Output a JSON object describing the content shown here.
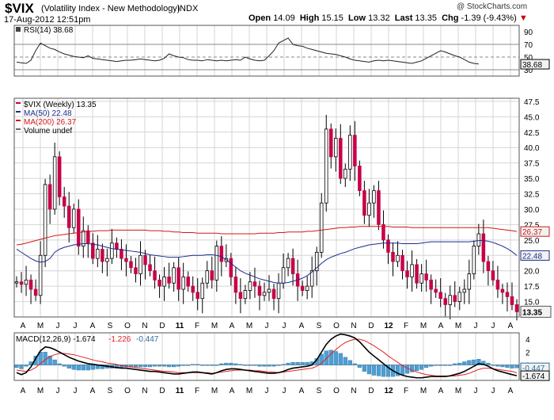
{
  "header": {
    "symbol": "$VIX",
    "name": "(Volatility Index - New Methodology)",
    "exchange": "INDX",
    "date": "17-Aug-2012 12:51pm",
    "copyright": "@ StockCharts.com",
    "quote": {
      "open_label": "Open",
      "open": "14.09",
      "high_label": "High",
      "high": "15.15",
      "low_label": "Low",
      "low": "13.32",
      "last_label": "Last",
      "last": "13.35",
      "chg_label": "Chg",
      "chg": "-1.39 (-9.43%)",
      "chg_arrow": "▼"
    }
  },
  "colors": {
    "up": "#ffffff",
    "down": "#c8004a",
    "wick": "#000000",
    "ma50": "#1c2c8c",
    "ma200": "#d01818",
    "histogram": "#4d9fd4",
    "macd": "#000000",
    "signal": "#e02020",
    "grid": "#d4d4d4",
    "last_box": "#f2f2f2"
  },
  "chart_data": [
    {
      "type": "line",
      "panel": "rsi",
      "legend": "RSI(14) 38.68",
      "series": [
        {
          "name": "RSI(14)",
          "x_start": 0,
          "x_step": 1,
          "values": [
            42,
            41,
            40,
            45,
            60,
            72,
            68,
            64,
            62,
            58,
            55,
            53,
            51,
            50,
            49,
            52,
            48,
            47,
            46,
            45,
            44,
            43,
            44,
            45,
            45,
            46,
            47,
            46,
            45,
            44,
            45,
            48,
            55,
            52,
            50,
            49,
            46,
            45,
            45,
            44,
            46,
            45,
            44,
            45,
            44,
            45,
            46,
            45,
            50,
            47,
            45,
            44,
            45,
            52,
            60,
            72,
            76,
            80,
            70,
            68,
            67,
            64,
            62,
            60,
            58,
            56,
            55,
            54,
            52,
            50,
            47,
            45,
            44,
            43,
            42,
            44,
            45,
            44,
            45,
            44,
            43,
            42,
            41,
            40,
            42,
            44,
            48,
            52,
            56,
            60,
            58,
            55,
            52,
            50,
            46,
            42,
            40,
            39
          ]
        }
      ],
      "yticks": [
        90,
        70,
        50,
        30
      ],
      "ref_lines": [
        70,
        50,
        30
      ],
      "last_value": "38.68",
      "ylim": [
        20,
        100
      ]
    },
    {
      "type": "candlestick",
      "panel": "price",
      "legend": [
        "$VIX (Weekly) 13.35",
        "MA(50) 22.48",
        "MA(200) 26.37",
        "Volume undef"
      ],
      "yticks": [
        47.5,
        45.0,
        42.5,
        40.0,
        37.5,
        35.0,
        32.5,
        30.0,
        27.5,
        25.0,
        22.5,
        20.0,
        17.5,
        15.0
      ],
      "ylim": [
        12.5,
        48
      ],
      "x_labels": [
        "A",
        "M",
        "J",
        "J",
        "A",
        "S",
        "O",
        "N",
        "D",
        "11",
        "F",
        "M",
        "A",
        "M",
        "J",
        "J",
        "A",
        "S",
        "O",
        "N",
        "D",
        "12",
        "F",
        "M",
        "A",
        "M",
        "J",
        "J",
        "A"
      ],
      "last_value": "13.35",
      "ma50_last": "22.48",
      "ma200_last": "26.37",
      "close": [
        18.2,
        17.8,
        18.5,
        17.0,
        16.0,
        22.5,
        34.0,
        30.0,
        38.5,
        32.0,
        30.5,
        27.0,
        30.0,
        24.0,
        26.5,
        24.5,
        22.0,
        23.5,
        21.5,
        22.0,
        24.5,
        23.5,
        22.0,
        21.5,
        20.5,
        19.5,
        22.5,
        21.0,
        20.0,
        18.5,
        17.5,
        19.0,
        18.0,
        20.5,
        17.0,
        19.0,
        17.5,
        16.5,
        15.5,
        18.0,
        20.0,
        18.5,
        24.0,
        21.5,
        22.0,
        19.0,
        16.5,
        15.5,
        16.8,
        18.2,
        17.5,
        16.0,
        16.5,
        17.0,
        15.5,
        18.0,
        20.5,
        22.0,
        19.5,
        17.5,
        16.8,
        17.5,
        20.0,
        23.0,
        31.0,
        43.0,
        38.5,
        41.5,
        35.0,
        36.5,
        42.0,
        37.0,
        33.0,
        29.0,
        31.0,
        33.0,
        27.5,
        25.0,
        23.0,
        21.5,
        22.5,
        20.0,
        19.0,
        21.0,
        18.0,
        19.5,
        18.5,
        17.0,
        16.5,
        15.5,
        14.5,
        16.0,
        15.0,
        16.5,
        17.0,
        19.5,
        24.0,
        26.0,
        21.5,
        20.0,
        18.5,
        17.0,
        16.5,
        15.8,
        14.5,
        13.35
      ],
      "ma50": [
        23.5,
        23.0,
        22.5,
        22.0,
        21.6,
        21.4,
        21.5,
        22.0,
        23.0,
        23.5,
        23.8,
        24.0,
        24.2,
        24.3,
        24.4,
        24.4,
        24.3,
        24.2,
        24.0,
        23.8,
        23.6,
        23.5,
        23.4,
        23.3,
        23.2,
        23.1,
        23.0,
        22.8,
        22.6,
        22.5,
        22.4,
        22.3,
        22.2,
        22.2,
        22.2,
        22.3,
        22.4,
        22.5,
        22.5,
        22.5,
        22.6,
        22.6,
        22.5,
        22.3,
        21.8,
        21.2,
        20.6,
        20.0,
        19.6,
        19.3,
        19.0,
        18.7,
        18.5,
        18.3,
        18.1,
        18.0,
        18.0,
        18.1,
        18.3,
        18.5,
        18.8,
        19.2,
        19.8,
        20.5,
        21.2,
        21.8,
        22.2,
        22.5,
        22.8,
        23.0,
        23.3,
        23.6,
        23.8,
        24.0,
        24.2,
        24.3,
        24.4,
        24.5,
        24.5,
        24.5,
        24.5,
        24.4,
        24.4,
        24.4,
        24.4,
        24.5,
        24.6,
        24.7,
        24.7,
        24.7,
        24.7,
        24.7,
        24.7,
        24.7,
        24.7,
        24.7,
        24.8,
        24.9,
        24.9,
        24.8,
        24.6,
        24.3,
        24.0,
        23.6,
        23.1,
        22.48
      ],
      "ma200": [
        24.2,
        24.3,
        24.5,
        24.7,
        24.9,
        25.1,
        25.3,
        25.5,
        25.7,
        25.8,
        25.9,
        26.0,
        26.1,
        26.2,
        26.3,
        26.4,
        26.4,
        26.5,
        26.5,
        26.5,
        26.6,
        26.6,
        26.6,
        26.6,
        26.6,
        26.6,
        26.6,
        26.6,
        26.5,
        26.5,
        26.5,
        26.4,
        26.4,
        26.3,
        26.3,
        26.2,
        26.2,
        26.2,
        26.1,
        26.1,
        26.1,
        26.1,
        26.1,
        26.0,
        26.0,
        26.0,
        26.0,
        26.0,
        26.0,
        26.0,
        26.0,
        26.1,
        26.1,
        26.1,
        26.1,
        26.2,
        26.2,
        26.3,
        26.3,
        26.3,
        26.3,
        26.4,
        26.4,
        26.5,
        26.6,
        26.7,
        26.8,
        26.9,
        27.0,
        27.0,
        27.1,
        27.1,
        27.2,
        27.2,
        27.2,
        27.2,
        27.2,
        27.2,
        27.2,
        27.1,
        27.1,
        27.1,
        27.1,
        27.0,
        27.0,
        27.0,
        27.0,
        27.0,
        27.0,
        27.0,
        27.0,
        27.0,
        27.0,
        27.0,
        27.0,
        27.0,
        27.0,
        27.0,
        27.0,
        27.0,
        26.9,
        26.8,
        26.7,
        26.6,
        26.5,
        26.37
      ]
    },
    {
      "type": "line",
      "panel": "macd",
      "legend": [
        "MACD(12,26,9) -1.674",
        "-1.226",
        "-0.447"
      ],
      "yticks": [
        4,
        2,
        0
      ],
      "ylim": [
        -2.4,
        5.0
      ],
      "x_labels": [
        "A",
        "M",
        "J",
        "J",
        "A",
        "S",
        "O",
        "N",
        "D",
        "11",
        "F",
        "M",
        "A",
        "M",
        "J",
        "J",
        "A",
        "S",
        "O",
        "N",
        "D",
        "12",
        "F",
        "M",
        "A",
        "M",
        "J",
        "J",
        "A"
      ],
      "macd_last": "-1.674",
      "hist_last": "-0.447",
      "x_start": 0,
      "x_step": 1,
      "series": [
        {
          "name": "MACD",
          "values": [
            -1.2,
            -1.5,
            -1.2,
            -0.3,
            1.0,
            2.2,
            2.8,
            2.7,
            2.4,
            2.0,
            1.6,
            1.2,
            0.9,
            0.6,
            0.4,
            0.2,
            0.1,
            0.0,
            -0.1,
            -0.2,
            -0.3,
            -0.4,
            -0.5,
            -0.5,
            -0.6,
            -0.7,
            -0.8,
            -0.9,
            -1.0,
            -1.0,
            -1.1,
            -1.2,
            -1.3,
            -1.4,
            -1.4,
            -1.3,
            -1.2,
            -1.1,
            -1.1,
            -1.2,
            -1.3,
            -1.4,
            -1.2,
            -0.9,
            -0.7,
            -0.6,
            -0.6,
            -0.7,
            -0.8,
            -0.9,
            -1.0,
            -1.1,
            -1.2,
            -1.3,
            -1.3,
            -1.2,
            -1.0,
            -0.7,
            -0.5,
            -0.4,
            -0.3,
            -0.2,
            0.0,
            0.8,
            2.0,
            3.2,
            4.0,
            4.5,
            4.8,
            4.7,
            4.5,
            4.2,
            3.6,
            2.8,
            2.0,
            1.4,
            0.8,
            0.2,
            -0.4,
            -0.9,
            -1.3,
            -1.6,
            -1.8,
            -1.9,
            -2.0,
            -2.0,
            -1.9,
            -1.8,
            -1.8,
            -1.8,
            -1.8,
            -1.7,
            -1.5,
            -1.3,
            -1.0,
            -0.6,
            -0.2,
            0.2,
            0.1,
            -0.2,
            -0.6,
            -0.9,
            -1.1,
            -1.3,
            -1.5,
            -1.674
          ]
        },
        {
          "name": "Signal",
          "values": [
            -0.8,
            -0.9,
            -1.0,
            -0.8,
            -0.4,
            0.2,
            0.8,
            1.3,
            1.6,
            1.8,
            1.8,
            1.7,
            1.6,
            1.4,
            1.2,
            1.0,
            0.8,
            0.6,
            0.5,
            0.3,
            0.2,
            0.1,
            -0.1,
            -0.2,
            -0.3,
            -0.4,
            -0.5,
            -0.6,
            -0.7,
            -0.8,
            -0.9,
            -1.0,
            -1.0,
            -1.1,
            -1.2,
            -1.2,
            -1.2,
            -1.2,
            -1.2,
            -1.2,
            -1.2,
            -1.3,
            -1.2,
            -1.1,
            -1.0,
            -0.9,
            -0.8,
            -0.8,
            -0.8,
            -0.8,
            -0.9,
            -0.9,
            -1.0,
            -1.1,
            -1.1,
            -1.2,
            -1.1,
            -1.0,
            -0.9,
            -0.8,
            -0.7,
            -0.6,
            -0.5,
            -0.2,
            0.3,
            1.0,
            1.7,
            2.4,
            3.0,
            3.5,
            3.8,
            4.0,
            4.0,
            3.8,
            3.4,
            3.0,
            2.5,
            2.0,
            1.4,
            0.9,
            0.4,
            -0.1,
            -0.5,
            -0.8,
            -1.1,
            -1.3,
            -1.5,
            -1.6,
            -1.7,
            -1.7,
            -1.7,
            -1.7,
            -1.7,
            -1.6,
            -1.5,
            -1.3,
            -1.0,
            -0.7,
            -0.5,
            -0.5,
            -0.6,
            -0.7,
            -0.8,
            -0.9,
            -1.0,
            -1.226
          ]
        }
      ]
    }
  ]
}
